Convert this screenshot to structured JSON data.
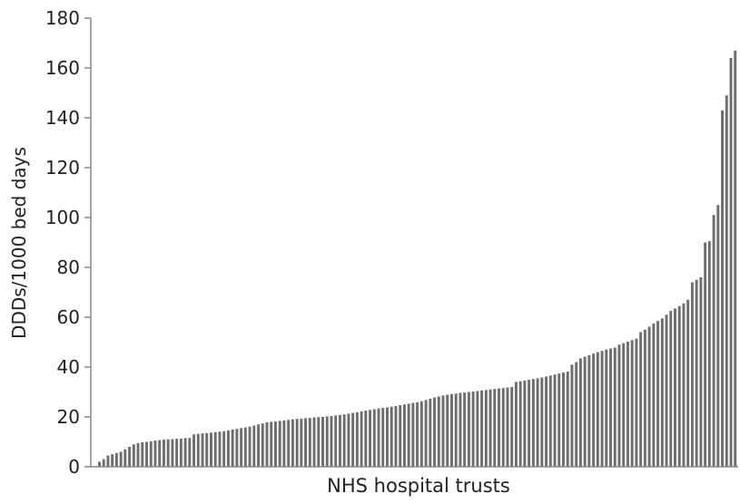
{
  "chart_data": {
    "type": "bar",
    "title": "",
    "xlabel": "NHS hospital trusts",
    "ylabel": "DDDs/1000 bed days",
    "ylim": [
      0,
      180
    ],
    "yticks": [
      0,
      20,
      40,
      60,
      80,
      100,
      120,
      140,
      160,
      180
    ],
    "sorted": "ascending",
    "grid": false,
    "legend": "none",
    "bar_color": "#6e6e6e",
    "axis_color": "#888888",
    "values": [
      2,
      3,
      4.5,
      5,
      5.5,
      6,
      7,
      8,
      9,
      9.5,
      9.8,
      10,
      10.2,
      10.5,
      10.7,
      10.9,
      11,
      11.1,
      11.2,
      11.3,
      11.5,
      11.6,
      13,
      13.2,
      13.4,
      13.5,
      13.7,
      13.9,
      14.1,
      14.3,
      14.6,
      14.9,
      15.2,
      15.5,
      15.8,
      16.1,
      16.5,
      17,
      17.4,
      17.8,
      18,
      18.2,
      18.4,
      18.6,
      18.8,
      19,
      19.2,
      19.3,
      19.5,
      19.6,
      19.8,
      19.9,
      20,
      20.2,
      20.4,
      20.6,
      20.8,
      21,
      21.3,
      21.6,
      21.9,
      22.2,
      22.5,
      22.8,
      23.1,
      23.4,
      23.6,
      23.8,
      24.1,
      24.4,
      24.7,
      25,
      25.3,
      25.6,
      25.9,
      26.3,
      26.8,
      27.3,
      27.8,
      28.2,
      28.6,
      28.9,
      29.2,
      29.4,
      29.6,
      29.8,
      30,
      30.2,
      30.4,
      30.6,
      30.8,
      31,
      31.2,
      31.4,
      31.6,
      31.8,
      32,
      34,
      34.3,
      34.6,
      34.9,
      35.2,
      35.5,
      35.8,
      36.2,
      36.6,
      37,
      37.4,
      37.8,
      38.2,
      41,
      42,
      43.5,
      44.2,
      44.8,
      45.4,
      46,
      46.5,
      47,
      47.4,
      47.8,
      49,
      49.6,
      50.2,
      50.8,
      51.4,
      54,
      55,
      56.2,
      57.5,
      58.5,
      59.5,
      61,
      62.5,
      63.5,
      64.5,
      65.5,
      67,
      74,
      75,
      76,
      90,
      90.5,
      101,
      105,
      143,
      149,
      164,
      167
    ]
  }
}
